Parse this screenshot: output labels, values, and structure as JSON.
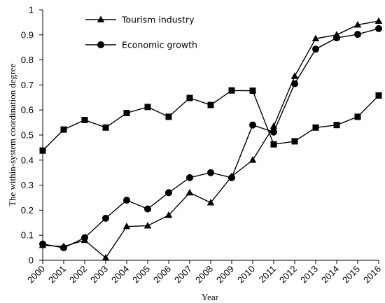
{
  "chart_data": {
    "type": "line",
    "xlabel": "Year",
    "ylabel": "The within-system coordination degree",
    "ylim": [
      0,
      1
    ],
    "yticks": [
      "0",
      "0.1",
      "0.2",
      "0.3",
      "0.4",
      "0.5",
      "0.6",
      "0.7",
      "0.8",
      "0.9",
      "1"
    ],
    "categories": [
      "2000",
      "2001",
      "2002",
      "2003",
      "2004",
      "2005",
      "2006",
      "2007",
      "2008",
      "2009",
      "2010",
      "2011",
      "2012",
      "2013",
      "2014",
      "2015",
      "2016"
    ],
    "legend_position": "top-left",
    "grid": false,
    "series": [
      {
        "name": "Tourism industry",
        "marker": "triangle",
        "values": [
          0.06,
          0.055,
          0.08,
          0.01,
          0.135,
          0.138,
          0.18,
          0.27,
          0.23,
          0.335,
          0.4,
          0.535,
          0.735,
          0.885,
          0.9,
          0.94,
          0.955
        ]
      },
      {
        "name": "Economic growth",
        "marker": "circle",
        "values": [
          0.065,
          0.05,
          0.09,
          0.168,
          0.24,
          0.205,
          0.27,
          0.33,
          0.35,
          0.33,
          0.54,
          0.512,
          0.705,
          0.843,
          0.888,
          0.902,
          0.925
        ]
      },
      {
        "marker": "square",
        "values": [
          0.438,
          0.522,
          0.56,
          0.53,
          0.588,
          0.612,
          0.573,
          0.648,
          0.62,
          0.678,
          0.677,
          0.463,
          0.475,
          0.53,
          0.54,
          0.573,
          0.658
        ]
      }
    ]
  }
}
